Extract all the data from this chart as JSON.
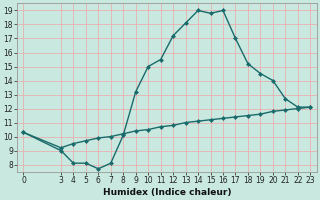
{
  "xlabel": "Humidex (Indice chaleur)",
  "bg_color": "#c8e8e0",
  "line_color": "#1a6b6b",
  "grid_color": "#e8b0b0",
  "xlim": [
    -0.5,
    23.5
  ],
  "ylim": [
    7.5,
    19.5
  ],
  "xticks": [
    0,
    3,
    4,
    5,
    6,
    7,
    8,
    9,
    10,
    11,
    12,
    13,
    14,
    15,
    16,
    17,
    18,
    19,
    20,
    21,
    22,
    23
  ],
  "yticks": [
    8,
    9,
    10,
    11,
    12,
    13,
    14,
    15,
    16,
    17,
    18,
    19
  ],
  "curve1_x": [
    0,
    3,
    4,
    5,
    6,
    7,
    8,
    9,
    10,
    11,
    12,
    13,
    14,
    15,
    16,
    17,
    18,
    19,
    20,
    21,
    22,
    23
  ],
  "curve1_y": [
    10.3,
    9.0,
    8.1,
    8.1,
    7.7,
    8.1,
    10.1,
    13.2,
    15.0,
    15.5,
    17.2,
    18.1,
    19.0,
    18.8,
    19.0,
    17.0,
    15.2,
    14.5,
    14.0,
    12.7,
    12.1,
    12.1
  ],
  "curve2_x": [
    0,
    3,
    4,
    5,
    6,
    7,
    8,
    9,
    10,
    11,
    12,
    13,
    14,
    15,
    16,
    17,
    18,
    19,
    20,
    21,
    22,
    23
  ],
  "curve2_y": [
    10.3,
    9.2,
    9.5,
    9.7,
    9.9,
    10.0,
    10.2,
    10.4,
    10.5,
    10.7,
    10.8,
    11.0,
    11.1,
    11.2,
    11.3,
    11.4,
    11.5,
    11.6,
    11.8,
    11.9,
    12.0,
    12.1
  ],
  "tick_fontsize": 5.5,
  "xlabel_fontsize": 6.5
}
